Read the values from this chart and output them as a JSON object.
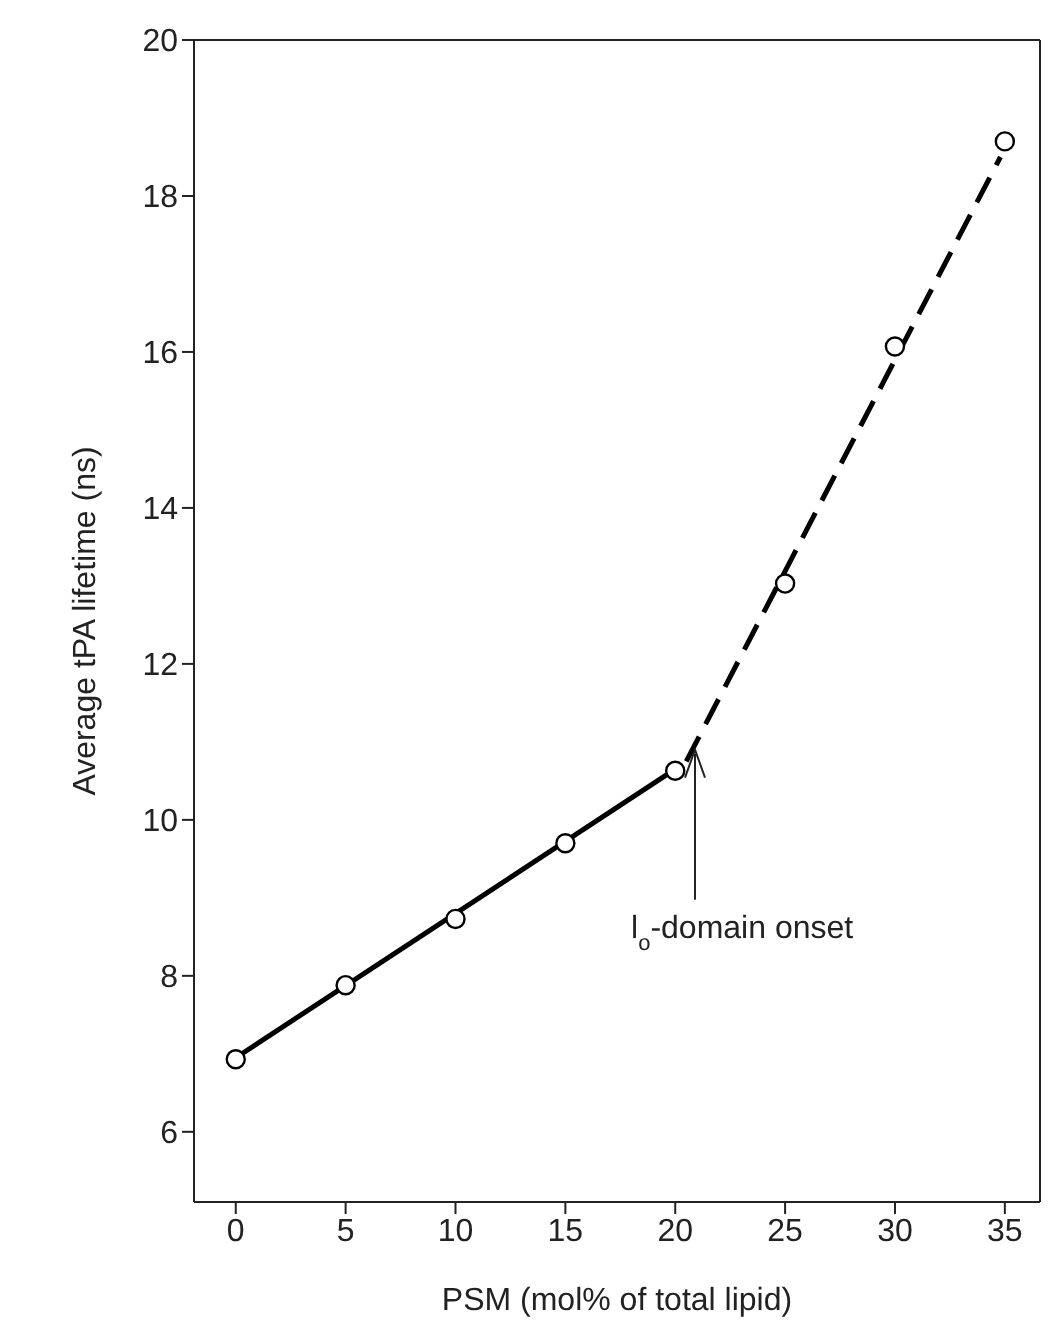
{
  "chart_data": {
    "type": "scatter",
    "xlabel": "PSM (mol% of total lipid)",
    "ylabel": "Average tPA lifetime (ns)",
    "xlim": [
      -1.9,
      36.6
    ],
    "xticks": [
      0,
      5,
      10,
      15,
      20,
      25,
      30,
      35
    ],
    "ylim": [
      5.1,
      20
    ],
    "yticks": [
      6,
      8,
      10,
      12,
      14,
      16,
      18,
      20
    ],
    "grid": false,
    "annotations": [
      {
        "text": "l$_{o}$-domain onset",
        "x": 20.9,
        "y": 10.9
      }
    ],
    "series": [
      {
        "type": "scatter",
        "color": "#000000",
        "marker": "circle",
        "x": [
          0,
          5,
          10,
          15,
          20,
          25,
          30,
          35
        ],
        "values": [
          6.93,
          7.88,
          8.73,
          9.7,
          10.63,
          13.03,
          16.07,
          18.7
        ]
      },
      {
        "type": "line",
        "color": "#000000",
        "marker": "none",
        "line_style": "solid",
        "x": [
          0,
          20
        ],
        "values": [
          6.95,
          10.65
        ]
      },
      {
        "type": "line",
        "color": "#000000",
        "marker": "none",
        "line_style": "dashed",
        "x": [
          20.5,
          34.8
        ],
        "values": [
          10.75,
          18.5
        ]
      }
    ]
  }
}
